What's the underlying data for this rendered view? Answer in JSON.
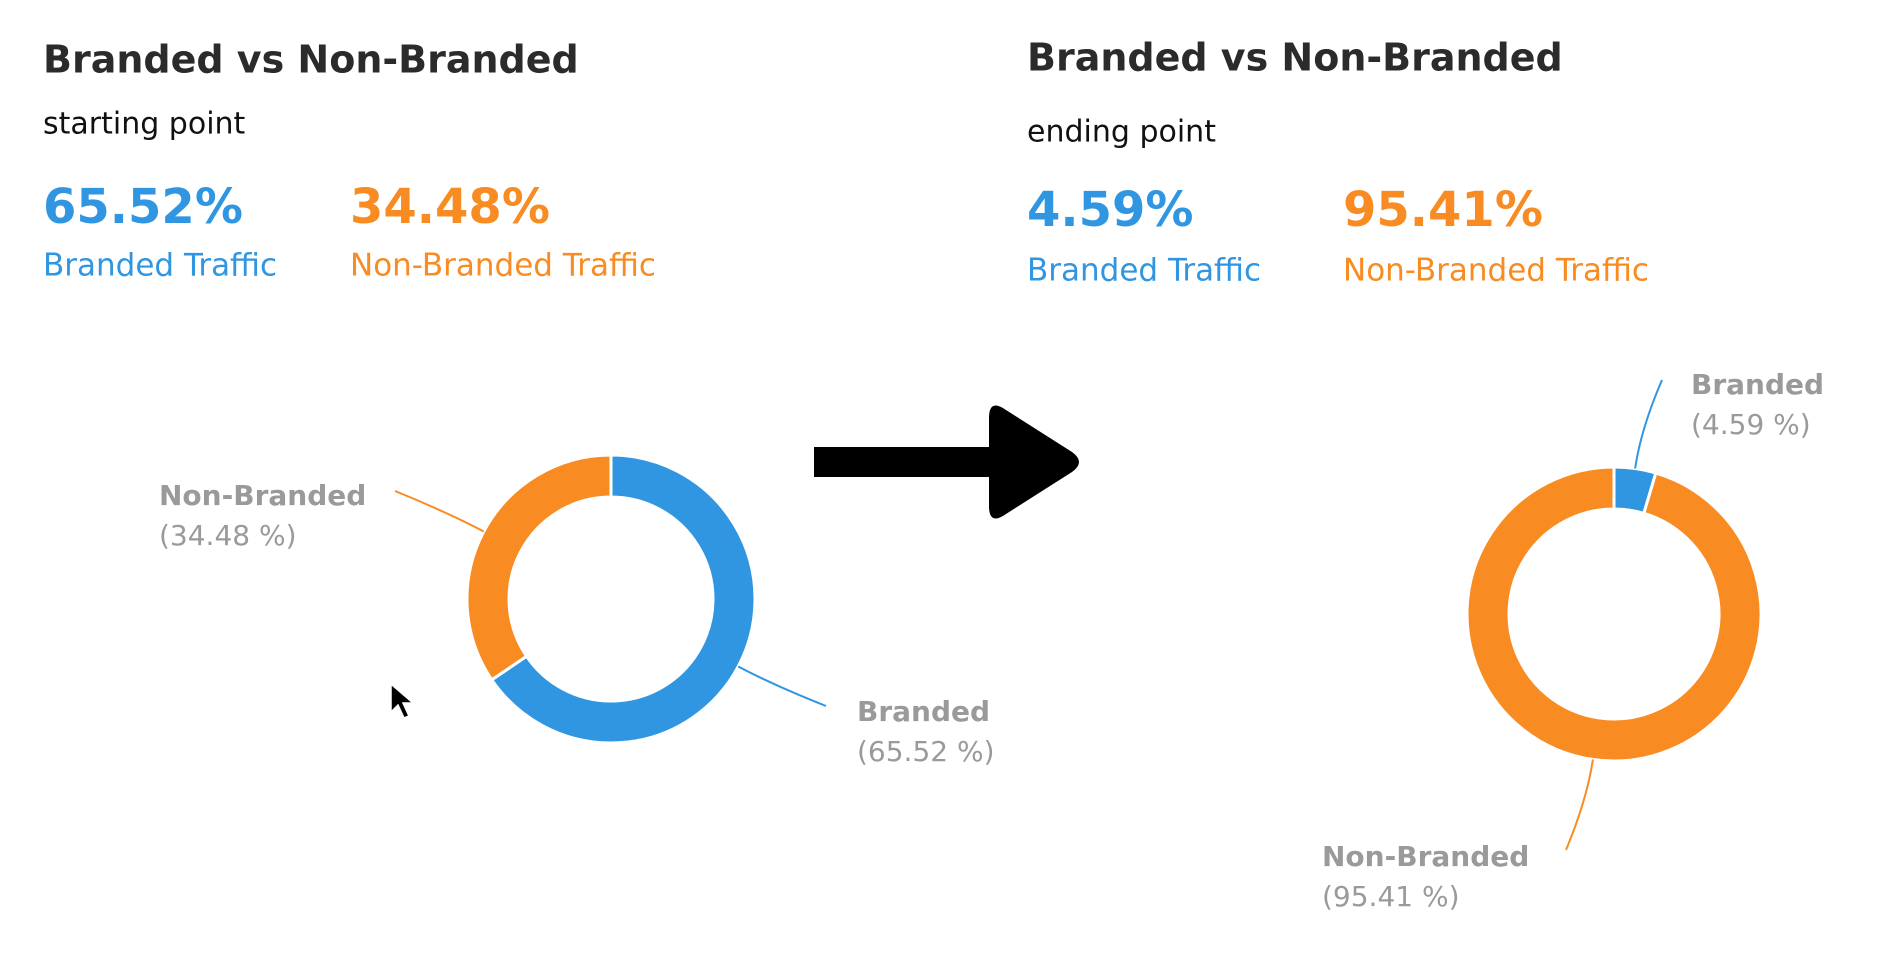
{
  "chart_data": [
    {
      "type": "pie",
      "donut": true,
      "title": "Branded vs Non-Branded",
      "subtitle": "starting point",
      "categories": [
        "Branded",
        "Non-Branded"
      ],
      "values": [
        65.52,
        34.48
      ],
      "value_labels": [
        "(65.52 %)",
        "(34.48 %)"
      ],
      "colors": [
        "#3096e1",
        "#f88c22"
      ],
      "kpi": {
        "labels": [
          "65.52%",
          "34.48%"
        ],
        "names": [
          "Branded Traffic",
          "Non-Branded Traffic"
        ]
      }
    },
    {
      "type": "pie",
      "donut": true,
      "title": "Branded vs Non-Branded",
      "subtitle": "ending point",
      "categories": [
        "Branded",
        "Non-Branded"
      ],
      "values": [
        4.59,
        95.41
      ],
      "value_labels": [
        "(4.59 %)",
        "(95.41 %)"
      ],
      "colors": [
        "#3096e1",
        "#f88c22"
      ],
      "kpi": {
        "labels": [
          "4.59%",
          "95.41%"
        ],
        "names": [
          "Branded Traffic",
          "Non-Branded Traffic"
        ]
      }
    }
  ]
}
